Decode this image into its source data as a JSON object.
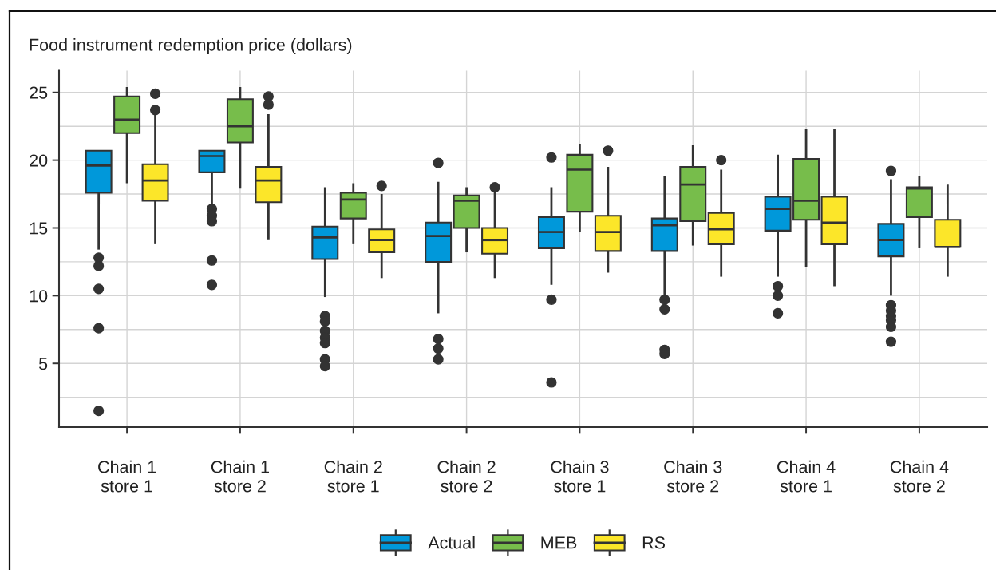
{
  "chart_data": {
    "type": "box",
    "ylabel": "Food instrument redemption price (dollars)",
    "categories": [
      "Chain 1\nstore 1",
      "Chain 1\nstore 2",
      "Chain 2\nstore 1",
      "Chain 2\nstore 2",
      "Chain 3\nstore 1",
      "Chain 3\nstore 2",
      "Chain 4\nstore 1",
      "Chain 4\nstore 2"
    ],
    "series": [
      {
        "name": "Actual",
        "color": "#0098da",
        "boxes": [
          {
            "low": 13.4,
            "q1": 17.6,
            "median": 19.6,
            "q3": 20.7,
            "high": 20.7,
            "outliers": [
              12.8,
              12.2,
              10.5,
              7.6,
              1.5
            ]
          },
          {
            "low": 16.8,
            "q1": 19.1,
            "median": 20.3,
            "q3": 20.7,
            "high": 20.7,
            "outliers": [
              16.4,
              15.9,
              15.5,
              12.6,
              10.8
            ]
          },
          {
            "low": 9.9,
            "q1": 12.7,
            "median": 14.3,
            "q3": 15.1,
            "high": 18.0,
            "outliers": [
              8.5,
              8.1,
              7.4,
              6.9,
              6.5,
              5.3,
              4.8
            ]
          },
          {
            "low": 8.7,
            "q1": 12.5,
            "median": 14.4,
            "q3": 15.4,
            "high": 18.4,
            "outliers": [
              19.8,
              6.8,
              6.1,
              5.3
            ]
          },
          {
            "low": 10.8,
            "q1": 13.5,
            "median": 14.7,
            "q3": 15.8,
            "high": 18.0,
            "outliers": [
              20.2,
              9.7,
              3.6
            ]
          },
          {
            "low": 9.9,
            "q1": 13.3,
            "median": 15.2,
            "q3": 15.7,
            "high": 18.8,
            "outliers": [
              9.7,
              9.0,
              6.0,
              5.7
            ]
          },
          {
            "low": 11.4,
            "q1": 14.8,
            "median": 16.4,
            "q3": 17.3,
            "high": 20.4,
            "outliers": [
              10.7,
              10.0,
              8.7
            ]
          },
          {
            "low": 10.0,
            "q1": 12.9,
            "median": 14.1,
            "q3": 15.3,
            "high": 18.6,
            "outliers": [
              19.2,
              9.3,
              8.9,
              8.5,
              8.2,
              7.7,
              6.6
            ]
          }
        ]
      },
      {
        "name": "MEB",
        "color": "#77bd4b",
        "boxes": [
          {
            "low": 18.3,
            "q1": 22.0,
            "median": 23.0,
            "q3": 24.7,
            "high": 25.4
          },
          {
            "low": 17.9,
            "q1": 21.3,
            "median": 22.5,
            "q3": 24.5,
            "high": 25.4
          },
          {
            "low": 13.8,
            "q1": 15.7,
            "median": 17.1,
            "q3": 17.6,
            "high": 18.3
          },
          {
            "low": 13.2,
            "q1": 15.0,
            "median": 17.0,
            "q3": 17.4,
            "high": 18.0
          },
          {
            "low": 14.7,
            "q1": 16.2,
            "median": 19.3,
            "q3": 20.4,
            "high": 21.2
          },
          {
            "low": 13.7,
            "q1": 15.5,
            "median": 18.2,
            "q3": 19.5,
            "high": 21.1
          },
          {
            "low": 12.1,
            "q1": 15.6,
            "median": 17.0,
            "q3": 20.1,
            "high": 22.3
          },
          {
            "low": 13.5,
            "q1": 15.8,
            "median": 17.9,
            "q3": 18.0,
            "high": 18.8
          }
        ]
      },
      {
        "name": "RS",
        "color": "#fce629",
        "boxes": [
          {
            "low": 13.8,
            "q1": 17.0,
            "median": 18.5,
            "q3": 19.7,
            "high": 23.4,
            "outliers": [
              24.9,
              23.7
            ]
          },
          {
            "low": 14.1,
            "q1": 16.9,
            "median": 18.5,
            "q3": 19.5,
            "high": 23.4,
            "outliers": [
              24.7,
              24.1
            ]
          },
          {
            "low": 11.3,
            "q1": 13.2,
            "median": 14.1,
            "q3": 14.9,
            "high": 17.5,
            "outliers": [
              18.1
            ]
          },
          {
            "low": 11.3,
            "q1": 13.1,
            "median": 14.1,
            "q3": 15.0,
            "high": 17.7,
            "outliers": [
              18.0
            ]
          },
          {
            "low": 11.7,
            "q1": 13.3,
            "median": 14.7,
            "q3": 15.9,
            "high": 19.5,
            "outliers": [
              20.7
            ]
          },
          {
            "low": 11.4,
            "q1": 13.8,
            "median": 14.9,
            "q3": 16.1,
            "high": 19.3,
            "outliers": [
              20.0
            ]
          },
          {
            "low": 10.7,
            "q1": 13.8,
            "median": 15.4,
            "q3": 17.3,
            "high": 22.3
          },
          {
            "low": 11.4,
            "q1": 13.6,
            "median": 13.6,
            "q3": 15.6,
            "high": 18.2
          }
        ]
      }
    ],
    "ylim": [
      0.3,
      26.6
    ],
    "yticks": [
      5,
      10,
      15,
      20,
      25
    ],
    "grid": true,
    "legend": "bottom"
  }
}
